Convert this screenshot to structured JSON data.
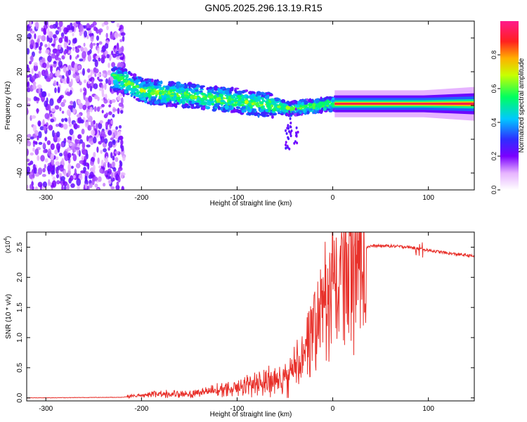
{
  "figure": {
    "title": "GN05.2025.296.13.19.R15"
  },
  "chart_data": [
    {
      "type": "heatmap",
      "title": "GN05.2025.296.13.19.R15",
      "xlabel": "Height of straight line (km)",
      "ylabel": "Frequency (Hz)",
      "xlim": [
        -320,
        148
      ],
      "ylim": [
        -50,
        50
      ],
      "xticks": [
        -300,
        -200,
        -100,
        0,
        100
      ],
      "yticks": [
        -40,
        -20,
        0,
        20,
        40
      ],
      "x_tick_labels": [
        "-300",
        "-200",
        "-100",
        "0",
        "100"
      ],
      "y_tick_labels": [
        "-40",
        "-20",
        "0",
        "20",
        "40"
      ],
      "ridge": {
        "description": "dominant frequency track vs height",
        "x": [
          -250,
          -220,
          -200,
          -175,
          -150,
          -125,
          -100,
          -80,
          -60,
          -45,
          -30,
          -15,
          0,
          50,
          100,
          148
        ],
        "y": [
          20,
          15,
          9,
          7,
          6,
          4,
          3,
          1,
          0,
          -2,
          -1,
          0,
          1,
          1,
          1,
          2
        ]
      },
      "colorbar": {
        "label": "Normalized spectral amplitude",
        "range": [
          0,
          1
        ],
        "ticks": [
          0.0,
          0.2,
          0.4,
          0.6,
          0.8
        ],
        "tick_labels": [
          "0.0",
          "0.2",
          "0.4",
          "0.6",
          "0.8"
        ]
      }
    },
    {
      "type": "line",
      "xlabel": "Height of straight line (km)",
      "ylabel": "SNR (10 * v/v)",
      "y_multiplier": "(x10",
      "y_multiplier_exp": "4",
      "y_multiplier_close": ")",
      "xlim": [
        -320,
        148
      ],
      "ylim": [
        -0.05,
        2.75
      ],
      "xticks": [
        -300,
        -200,
        -100,
        0,
        100
      ],
      "yticks": [
        0.0,
        0.5,
        1.0,
        1.5,
        2.0,
        2.5
      ],
      "x_tick_labels": [
        "-300",
        "-200",
        "-100",
        "0",
        "100"
      ],
      "y_tick_labels": [
        "0.0",
        "0.5",
        "1.0",
        "1.5",
        "2.0",
        "2.5"
      ],
      "series": [
        {
          "name": "SNR",
          "color": "#e8302a",
          "x": [
            -320,
            -220,
            -200,
            -180,
            -160,
            -140,
            -120,
            -100,
            -80,
            -60,
            -50,
            -40,
            -30,
            -20,
            -10,
            0,
            10,
            20,
            30,
            40,
            60,
            80,
            100,
            120,
            148
          ],
          "y": [
            0.0,
            0.01,
            0.05,
            0.08,
            0.06,
            0.1,
            0.15,
            0.18,
            0.3,
            0.28,
            0.35,
            0.55,
            0.7,
            1.4,
            1.65,
            2.0,
            2.2,
            2.35,
            2.48,
            2.52,
            2.52,
            2.5,
            2.45,
            2.4,
            2.35
          ]
        }
      ]
    }
  ]
}
